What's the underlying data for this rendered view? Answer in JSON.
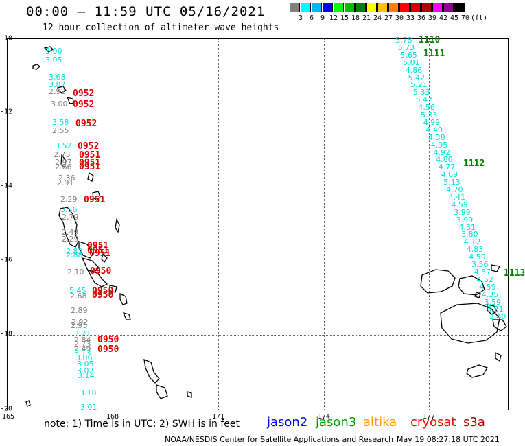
{
  "header": {
    "title": "00:00 – 11:59 UTC 05/16/2021",
    "subtitle": "12 hour collection of altimeter wave heights"
  },
  "colorbar": {
    "swatches": [
      "#808080",
      "#00ffff",
      "#00b8ff",
      "#0000ff",
      "#00ff00",
      "#00c000",
      "#008000",
      "#ffff00",
      "#ffc000",
      "#ff8000",
      "#ff0000",
      "#d00000",
      "#b00000",
      "#ff00ff",
      "#900090",
      "#000000"
    ],
    "labels": [
      "3",
      "6",
      "9",
      "12",
      "15",
      "18",
      "21",
      "24",
      "27",
      "30",
      "33",
      "36",
      "39",
      "42",
      "45",
      "70",
      "(ft)"
    ]
  },
  "axes": {
    "y_ticks": [
      "-10",
      "-12",
      "-14",
      "-16",
      "-18",
      "-20"
    ],
    "x_ticks": [
      "165",
      "168",
      "171",
      "174",
      "177"
    ]
  },
  "observations_west": [
    {
      "text": "3.00",
      "color": "#00e0e0"
    },
    {
      "text": "3.05",
      "color": "#00e0e0"
    },
    {
      "text": "3.68",
      "color": "#00e0e0"
    },
    {
      "text": "3.87",
      "color": "#00e0e0"
    },
    {
      "text": "2.92",
      "color": "#808080"
    },
    {
      "text": "3.00",
      "color": "#808080"
    },
    {
      "text": "3.58",
      "color": "#00e0e0"
    },
    {
      "text": "2.55",
      "color": "#808080"
    },
    {
      "text": "3.52",
      "color": "#00e0e0"
    },
    {
      "text": "2.73",
      "color": "#808080"
    },
    {
      "text": "2.97",
      "color": "#808080"
    },
    {
      "text": "2.66",
      "color": "#808080"
    },
    {
      "text": "2.36",
      "color": "#808080"
    },
    {
      "text": "2.91",
      "color": "#808080"
    },
    {
      "text": "2.29",
      "color": "#808080"
    },
    {
      "text": "3.56",
      "color": "#00e0e0"
    },
    {
      "text": "2.79",
      "color": "#808080"
    },
    {
      "text": "2.49",
      "color": "#808080"
    },
    {
      "text": "2.29",
      "color": "#808080"
    },
    {
      "text": "2.82",
      "color": "#00e0e0"
    },
    {
      "text": "2.88",
      "color": "#00e0e0"
    },
    {
      "text": "2.10",
      "color": "#808080"
    },
    {
      "text": "5.45",
      "color": "#00e0e0"
    },
    {
      "text": "2.68",
      "color": "#808080"
    },
    {
      "text": "2.89",
      "color": "#808080"
    },
    {
      "text": "2.92",
      "color": "#808080"
    },
    {
      "text": "2.95",
      "color": "#808080"
    },
    {
      "text": "2.84",
      "color": "#808080"
    },
    {
      "text": "3.21",
      "color": "#00e0e0"
    },
    {
      "text": "2.73",
      "color": "#808080"
    },
    {
      "text": "2.49",
      "color": "#808080"
    },
    {
      "text": "3.13",
      "color": "#00e0e0"
    },
    {
      "text": "3.06",
      "color": "#00e0e0"
    },
    {
      "text": "3.05",
      "color": "#00e0e0"
    },
    {
      "text": "3.02",
      "color": "#00e0e0"
    },
    {
      "text": "3.14",
      "color": "#00e0e0"
    },
    {
      "text": "3.18",
      "color": "#00e0e0"
    },
    {
      "text": "3.01",
      "color": "#00e0e0"
    }
  ],
  "times_west": [
    "0952",
    "0952",
    "0952",
    "0952",
    "0951",
    "0951",
    "0951",
    "0951",
    "0951",
    "0951",
    "0951",
    "0950",
    "0950",
    "0950",
    "0950",
    "0950"
  ],
  "observations_east": [
    "5.78",
    "5.73",
    "5.65",
    "5.01",
    "4.86",
    "5.42",
    "5.21",
    "5.33",
    "5.47",
    "4.56",
    "5.33",
    "4.99",
    "4.40",
    "4.38",
    "4.95",
    "4.92",
    "4.80",
    "4.77",
    "4.89",
    "5.13",
    "4.70",
    "4.41",
    "4.59",
    "3.99",
    "3.99",
    "4.31",
    "3.80",
    "4.12",
    "4.83",
    "4.59",
    "3.56",
    "4.57",
    "4.52",
    "4.59",
    "4.35",
    "3.59",
    "3.21",
    "3.40"
  ],
  "times_east": [
    "1110",
    "1111",
    "1112",
    "1113"
  ],
  "note": "note: 1) Time is in UTC; 2) SWH is in feet",
  "satellites": [
    {
      "name": "jason2",
      "color": "#0000ff"
    },
    {
      "name": "jason3",
      "color": "#00a000"
    },
    {
      "name": "altika",
      "color": "#ff9900"
    },
    {
      "name": "cryosat",
      "color": "#ff0000"
    },
    {
      "name": "s3a",
      "color": "#b00000"
    }
  ],
  "footer": {
    "credit": "NOAA/NESDIS Center for Satellite Applications and Research",
    "timestamp": "May 19 08:27:18 UTC 2021"
  }
}
